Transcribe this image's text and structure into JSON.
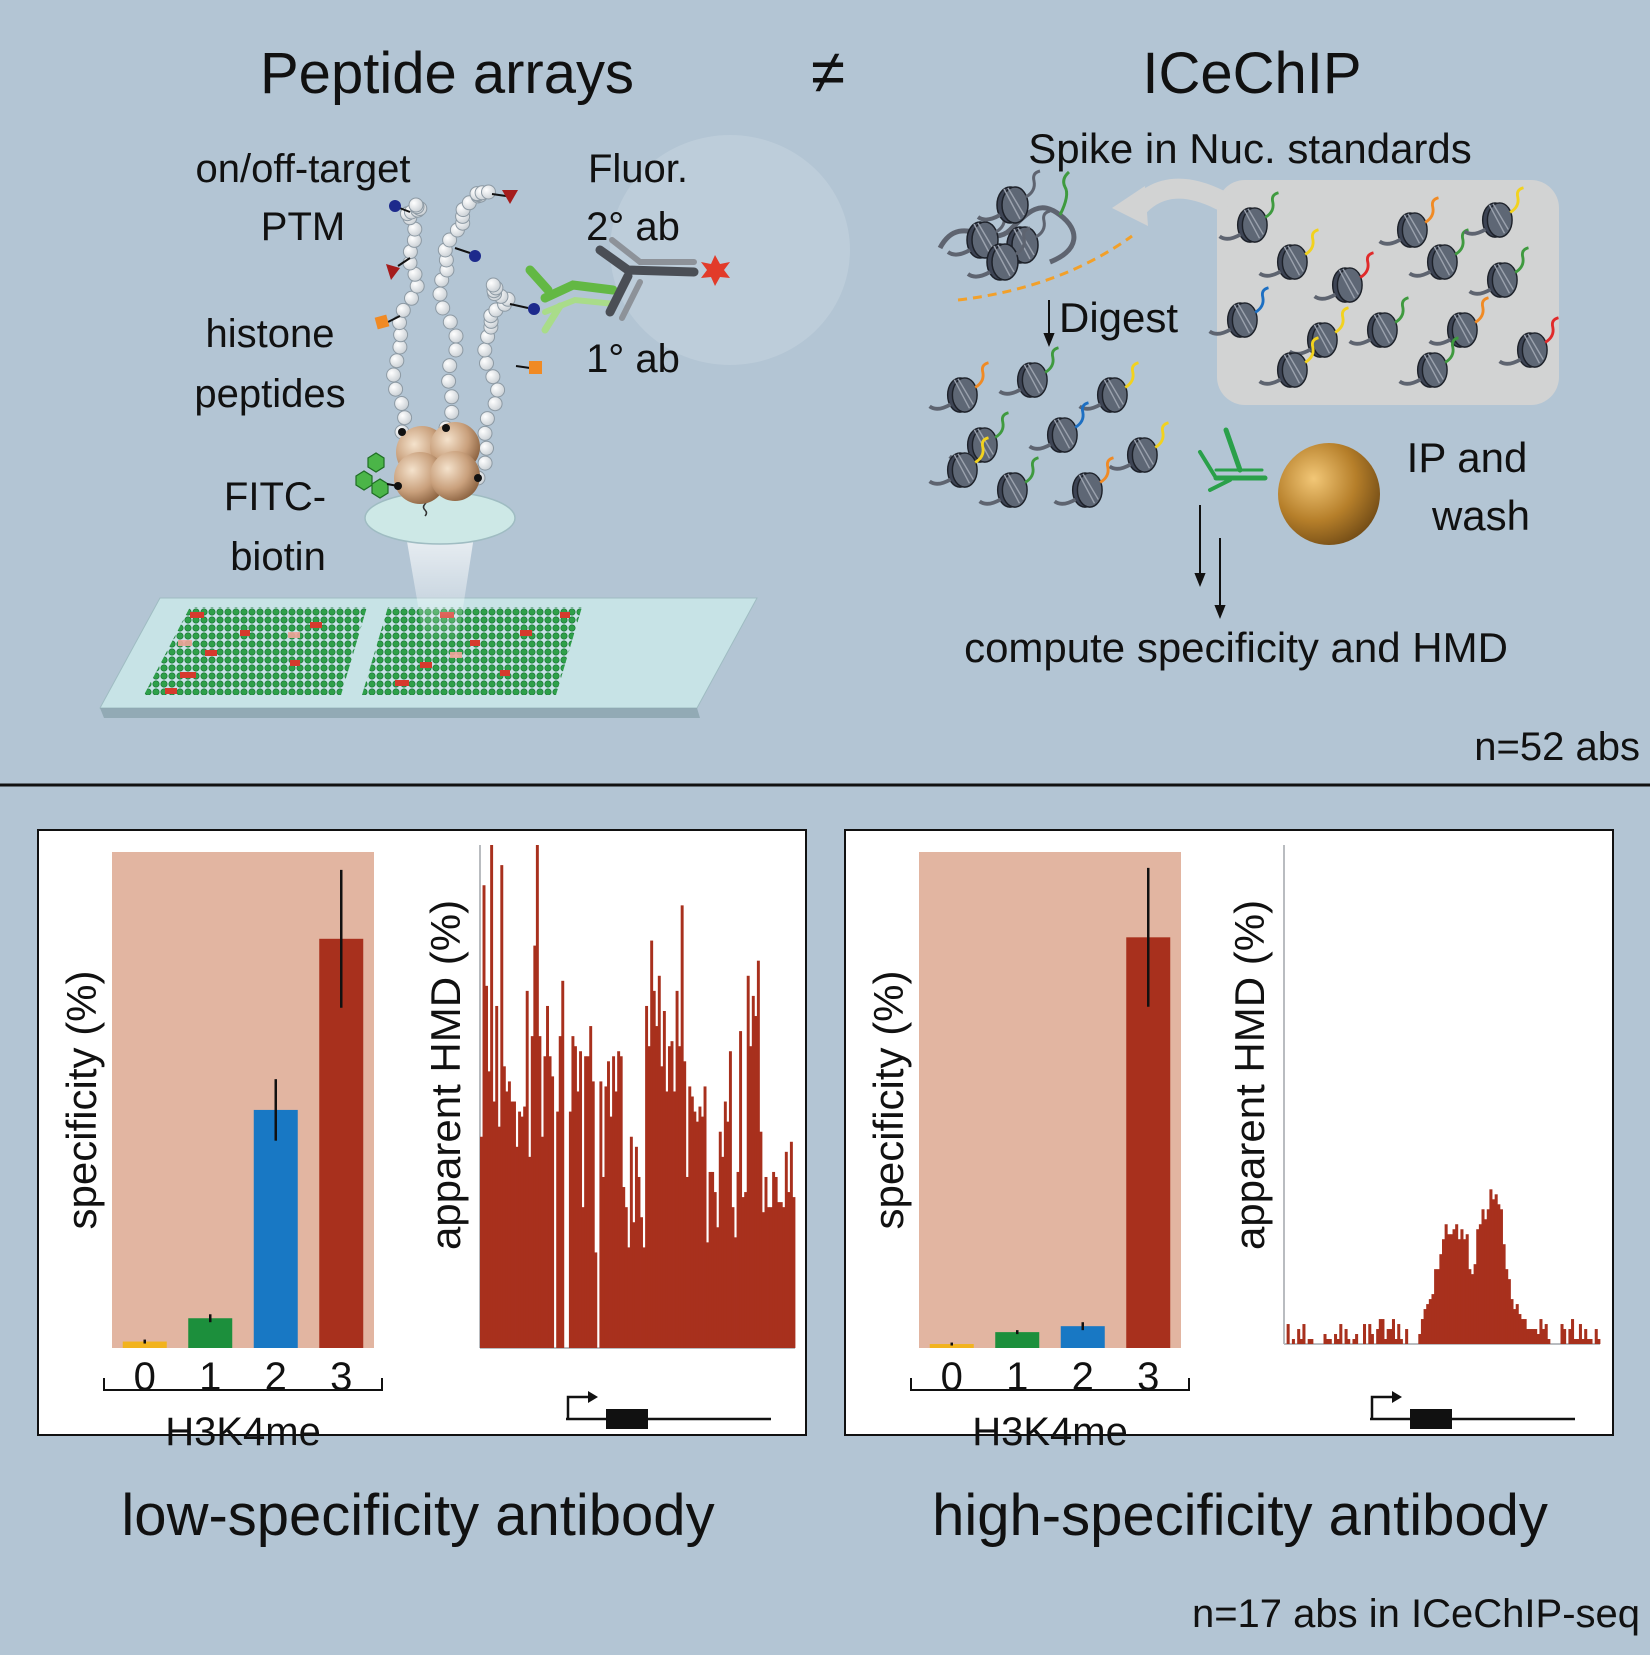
{
  "colors": {
    "background": "#b3c5d4",
    "shade": "#e2b5a1",
    "bar_me0": "#f2b31e",
    "bar_me1": "#1c8f3c",
    "bar_me2": "#1878c4",
    "bar_me3": "#a8301d",
    "signal": "#a8301d",
    "nucleosome": "#3d4454",
    "bead": "#b67f2a"
  },
  "top": {
    "title_left": "Peptide arrays",
    "neq_symbol": "≠",
    "title_right": "ICeChIP",
    "peptide_labels": {
      "ptm_line1": "on/off-target",
      "ptm_line2": "PTM",
      "fluor_line1": "Fluor.",
      "fluor_line2": "2° ab",
      "primary_ab": "1° ab",
      "histone_line1": "histone",
      "histone_line2": "peptides",
      "fitc_line1": "FITC-",
      "fitc_line2": "biotin"
    },
    "icechip_labels": {
      "spike_in": "Spike in Nuc. standards",
      "digest": "Digest",
      "ip_line1": "IP and",
      "ip_line2": "wash",
      "compute": "compute specificity and HMD"
    },
    "n_count": "n=52 abs"
  },
  "panels": [
    {
      "caption": "low-specificity antibody",
      "y_label_bar": "specificity (%)",
      "y_label_signal": "apparent HMD (%)",
      "x_group_label": "H3K4me",
      "categories": [
        "0",
        "1",
        "2",
        "3"
      ],
      "values": [
        1.3,
        6.0,
        48.0,
        82.5
      ],
      "errors": [
        0.4,
        0.8,
        6.2,
        13.9
      ],
      "signal": [
        42,
        92,
        72,
        55,
        100,
        49,
        68,
        44,
        96,
        56,
        51,
        53,
        49,
        49,
        40,
        47,
        46,
        48,
        71,
        38,
        62,
        80,
        100,
        62,
        42,
        58,
        68,
        58,
        54,
        0,
        47,
        62,
        73,
        0,
        0,
        47,
        62,
        60,
        51,
        59,
        28,
        58,
        58,
        64,
        53,
        19,
        0,
        53,
        34,
        52,
        57,
        46,
        58,
        51,
        59,
        58,
        32,
        28,
        20,
        42,
        25,
        40,
        34,
        26,
        20,
        68,
        60,
        81,
        71,
        64,
        74,
        56,
        67,
        51,
        60,
        61,
        51,
        71,
        60,
        88,
        57,
        34,
        52,
        50,
        47,
        45,
        48,
        46,
        52,
        21,
        35,
        35,
        31,
        24,
        43,
        38,
        49,
        45,
        59,
        28,
        22,
        35,
        63,
        30,
        31,
        74,
        60,
        70,
        66,
        77,
        43,
        27,
        34,
        28,
        28,
        35,
        34,
        29,
        29,
        28,
        39,
        31,
        41,
        30
      ]
    },
    {
      "caption": "high-specificity antibody",
      "y_label_bar": "specificity (%)",
      "y_label_signal": "apparent HMD (%)",
      "x_group_label": "H3K4me",
      "categories": [
        "0",
        "1",
        "2",
        "3"
      ],
      "values": [
        0.8,
        3.2,
        4.4,
        82.8
      ],
      "errors": [
        0.3,
        0.4,
        0.8,
        14.0
      ],
      "signal": [
        0,
        4,
        0,
        1,
        0,
        3,
        1,
        4,
        0,
        1,
        1,
        0,
        0,
        0,
        0,
        2,
        1,
        1,
        0,
        2,
        1,
        4,
        0,
        3,
        1,
        0,
        1,
        2,
        0,
        0,
        4,
        0,
        4,
        2,
        0,
        3,
        5,
        5,
        1,
        3,
        3,
        5,
        1,
        4,
        1,
        0,
        3,
        0,
        0,
        0,
        0,
        2,
        5,
        7,
        8,
        9,
        10,
        15,
        15,
        18,
        21,
        24,
        22,
        22,
        23,
        24,
        21,
        23,
        21,
        22,
        15,
        14,
        16,
        23,
        24,
        27,
        25,
        27,
        31,
        29,
        30,
        28,
        27,
        20,
        15,
        13,
        9,
        7,
        8,
        6,
        5,
        5,
        3,
        3,
        3,
        3,
        2,
        5,
        3,
        4,
        1,
        0,
        0,
        0,
        0,
        4,
        3,
        0,
        3,
        5,
        1,
        1,
        4,
        1,
        3,
        1,
        1,
        0,
        3,
        1
      ]
    }
  ],
  "n_seq": "n=17 abs in ICeChIP-seq"
}
